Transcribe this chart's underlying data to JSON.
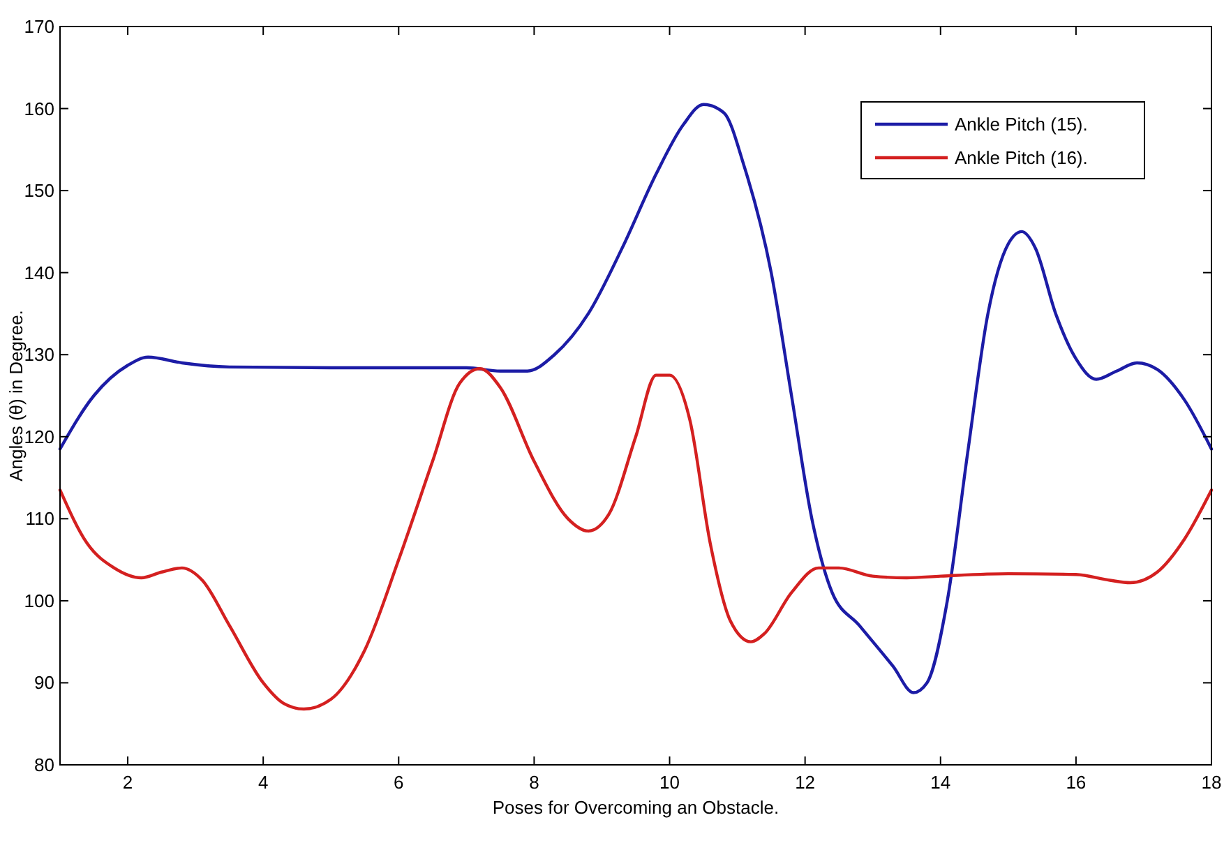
{
  "chart_data": {
    "type": "line",
    "xlabel": "Poses for Overcoming an Obstacle.",
    "ylabel": "Angles (θ) in Degree.",
    "xlim": [
      1,
      18
    ],
    "xticks": [
      2,
      4,
      6,
      8,
      10,
      12,
      14,
      16,
      18
    ],
    "ylim": [
      80,
      170
    ],
    "yticks": [
      80,
      90,
      100,
      110,
      120,
      130,
      140,
      150,
      160,
      170
    ],
    "grid": false,
    "legend": "top right",
    "marker": "none",
    "line_style": "solid",
    "series": [
      {
        "name": "Ankle Pitch (15).",
        "color": "#1c1ca6",
        "x": [
          1,
          1.5,
          2,
          2.3,
          2.8,
          3.5,
          5,
          6,
          7,
          7.5,
          7.9,
          8.3,
          8.8,
          9.3,
          9.8,
          10.2,
          10.5,
          10.8,
          11.1,
          11.5,
          11.8,
          12.1,
          12.4,
          12.8,
          13.3,
          13.6,
          13.8,
          14.1,
          14.4,
          14.7,
          15,
          15.2,
          15.4,
          15.7,
          16,
          16.3,
          16.6,
          16.9,
          17.2,
          17.6,
          18
        ],
        "values": [
          118.5,
          125,
          128.7,
          129.7,
          129,
          128.5,
          128.4,
          128.4,
          128.4,
          128,
          128,
          130,
          135,
          143,
          152,
          158,
          160.5,
          159.5,
          153,
          140,
          125,
          110,
          101,
          97,
          92,
          88.8,
          90,
          100,
          118,
          135,
          143.5,
          145,
          143,
          135,
          129.5,
          127,
          128,
          129,
          128.2,
          124.5,
          118.5
        ]
      },
      {
        "name": "Ankle Pitch (16).",
        "color": "#d42020",
        "x": [
          1,
          1.4,
          1.8,
          2.2,
          2.5,
          2.8,
          3.1,
          3.5,
          4,
          4.3,
          4.6,
          5,
          5.5,
          6,
          6.5,
          6.9,
          7.2,
          7.5,
          8,
          8.5,
          8.8,
          9.1,
          9.5,
          9.8,
          10,
          10.3,
          10.6,
          10.9,
          11.2,
          11.4,
          11.8,
          12.2,
          12.5,
          13,
          13.5,
          14,
          15,
          16,
          16.5,
          16.8,
          17.2,
          17.6,
          18
        ],
        "values": [
          113.5,
          107,
          104,
          102.8,
          103.5,
          104,
          102.5,
          97,
          90,
          87.5,
          86.8,
          88,
          94,
          105,
          117,
          126.5,
          128.3,
          126,
          117,
          110,
          108.5,
          110.5,
          120,
          127.5,
          127.5,
          122,
          107,
          97.5,
          95,
          96,
          101,
          104,
          104,
          103,
          102.8,
          103,
          103.3,
          103.2,
          102.5,
          102.2,
          103.5,
          107.5,
          113.5
        ]
      }
    ]
  }
}
